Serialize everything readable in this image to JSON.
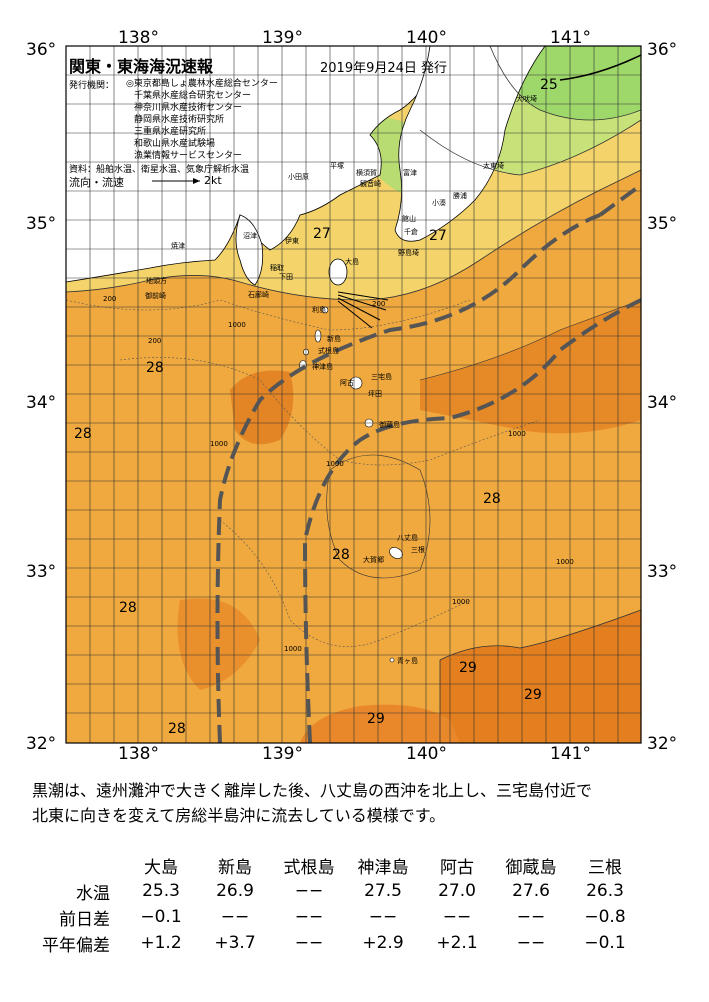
{
  "map": {
    "title": "関東・東海海況速報",
    "date": "2019年9月24日 発行",
    "issuers_label": "発行機関：",
    "issuers": [
      "◎東京都島しょ農林水産総合センター",
      "千葉県水産総合研究センター",
      "神奈川県水産技術センター",
      "静岡県水産技術研究所",
      "三重県水産研究所",
      "和歌山県水産試験場",
      "漁業情報サービスセンター"
    ],
    "source": "資料：船舶水温、衛星水温、気象庁解析水温",
    "flow_legend_label": "流向・流速",
    "flow_legend_value": "2kt",
    "lon_labels": [
      "138°",
      "139°",
      "140°",
      "141°"
    ],
    "lat_labels": [
      "36°",
      "35°",
      "34°",
      "33°",
      "32°"
    ],
    "temp_labels": [
      "25",
      "27",
      "27",
      "28",
      "28",
      "28",
      "28",
      "28",
      "28",
      "29",
      "29",
      "29"
    ],
    "depth_labels": [
      "200",
      "200",
      "1000",
      "1000",
      "1000",
      "1000",
      "1000",
      "1000",
      "200",
      "1000"
    ],
    "place_names": [
      "犬吠埼",
      "太東埼",
      "勝浦",
      "小湊",
      "平塚",
      "横須賀",
      "観音崎",
      "館山",
      "千倉",
      "富津",
      "野島埼",
      "小田原",
      "伊東",
      "大島",
      "沼津",
      "稲取",
      "石廊崎",
      "下田",
      "焼津",
      "御前崎",
      "地頭方",
      "利島",
      "新島",
      "式根島",
      "神津島",
      "三宅島",
      "阿古",
      "坪田",
      "御蔵島",
      "八丈島",
      "三根",
      "大賀郷",
      "青ヶ島"
    ],
    "colors": {
      "t25": "#9ed86a",
      "t26": "#c8e27a",
      "t27": "#f3d36a",
      "t28": "#f0a93e",
      "t28b": "#ec9a30",
      "t29": "#e37f1f",
      "land": "#ffffff",
      "kuroshio": "#555555",
      "grid": "#333333"
    }
  },
  "summary": {
    "line1": "黒潮は、遠州灘沖で大きく離岸した後、八丈島の西沖を北上し、三宅島付近で",
    "line2": "北東に向きを変えて房総半島沖に流去している模様です。"
  },
  "table": {
    "columns": [
      "大島",
      "新島",
      "式根島",
      "神津島",
      "阿古",
      "御蔵島",
      "三根"
    ],
    "rows": [
      {
        "label": "水温",
        "values": [
          "25.3",
          "26.9",
          "−−",
          "27.5",
          "27.0",
          "27.6",
          "26.3"
        ]
      },
      {
        "label": "前日差",
        "values": [
          "−0.1",
          "−−",
          "−−",
          "−−",
          "−−",
          "−−",
          "−0.8"
        ]
      },
      {
        "label": "平年偏差",
        "values": [
          "+1.2",
          "+3.7",
          "−−",
          "+2.9",
          "+2.1",
          "−−",
          "−0.1"
        ]
      }
    ]
  }
}
